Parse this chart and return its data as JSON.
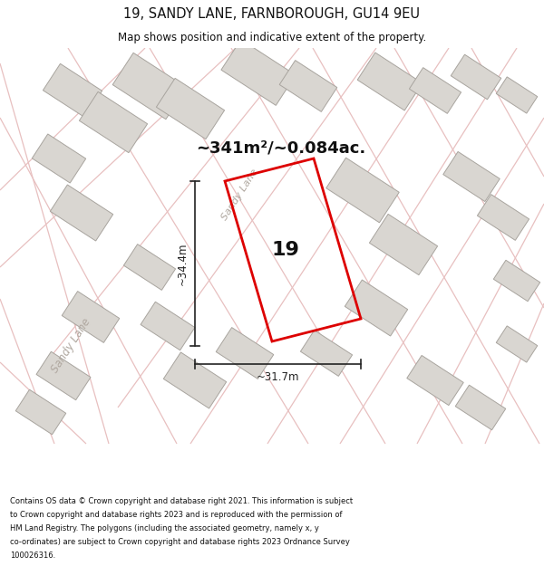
{
  "title_line1": "19, SANDY LANE, FARNBOROUGH, GU14 9EU",
  "title_line2": "Map shows position and indicative extent of the property.",
  "area_label": "~341m²/~0.084ac.",
  "dim_width": "~31.7m",
  "dim_height": "~34.4m",
  "plot_number": "19",
  "road_label_center": "Sandy Lane",
  "road_label_sw": "Sandy Lane",
  "footer_text": "Contains OS data © Crown copyright and database right 2021. This information is subject to Crown copyright and database rights 2023 and is reproduced with the permission of HM Land Registry. The polygons (including the associated geometry, namely x, y co-ordinates) are subject to Crown copyright and database rights 2023 Ordnance Survey 100026316.",
  "map_bg": "#f2f0ee",
  "building_fill": "#d9d6d1",
  "building_edge": "#a8a49e",
  "road_line_color": "#e8c0c0",
  "plot_color": "#dd0000",
  "dim_color": "#222222",
  "text_color": "#111111",
  "white": "#ffffff",
  "title_fontsize": 10.5,
  "subtitle_fontsize": 8.5,
  "area_fontsize": 13,
  "plot_num_fontsize": 16,
  "dim_fontsize": 8.5,
  "road_fontsize": 8,
  "footer_fontsize": 6.0
}
